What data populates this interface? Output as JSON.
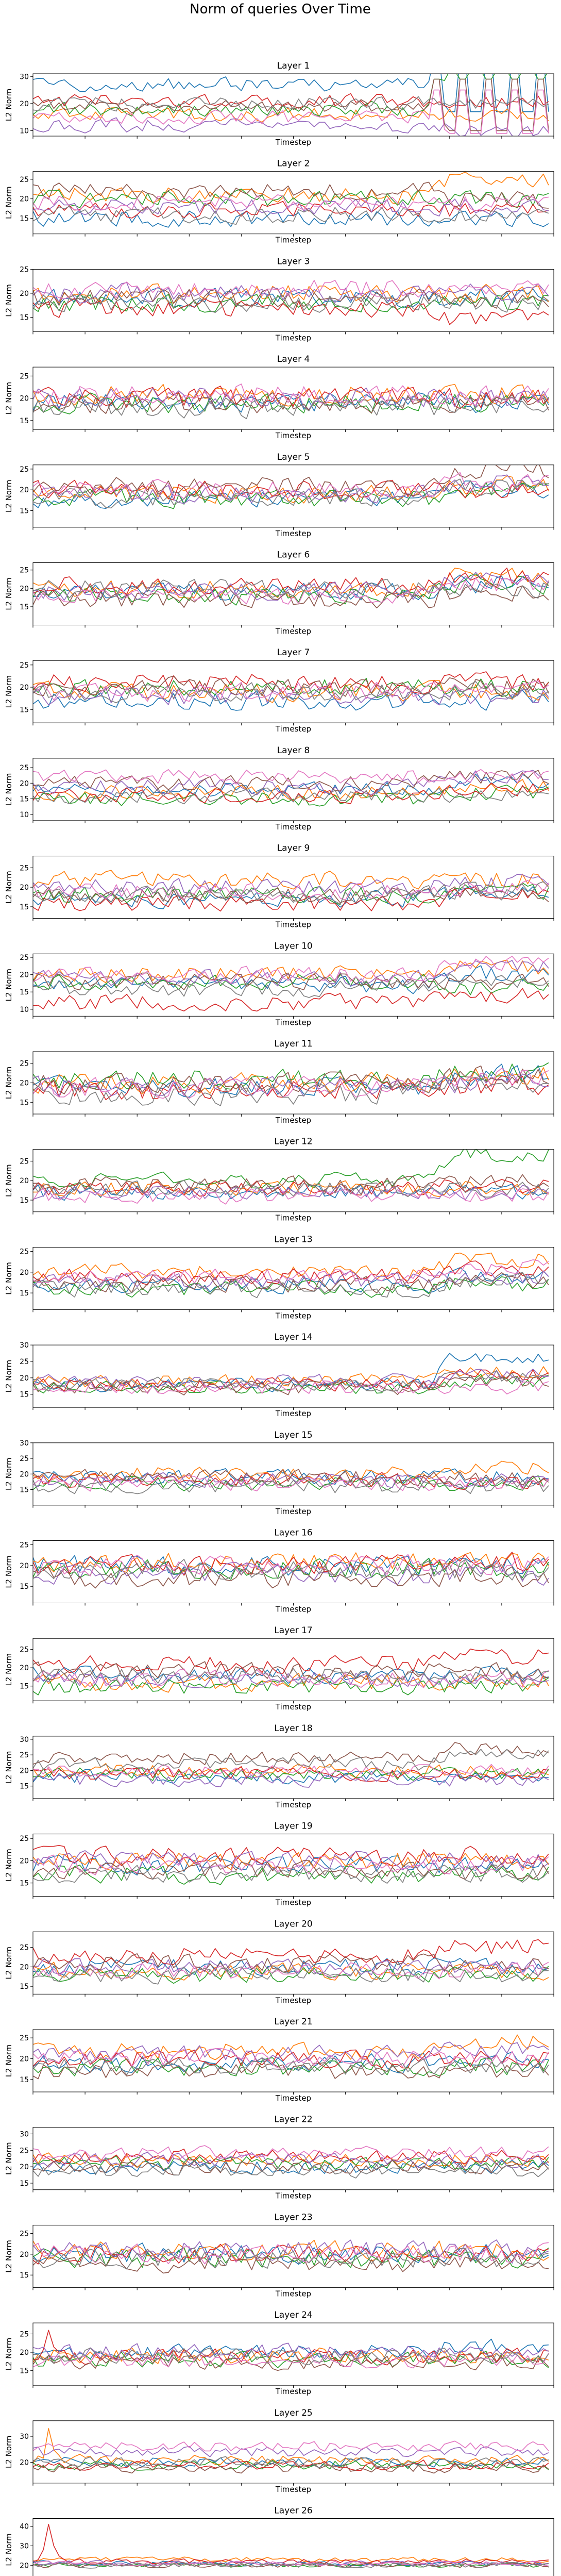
{
  "figure": {
    "title": "Norm of queries Over Time",
    "xlabel": "Timestep",
    "ylabel": "L2 Norm",
    "xlim": [
      0,
      100
    ],
    "xticks": [
      0,
      10,
      20,
      30,
      40,
      50,
      60,
      70,
      80,
      90,
      100
    ],
    "series_colors": [
      "#1f77b4",
      "#ff7f0e",
      "#2ca02c",
      "#d62728",
      "#9467bd",
      "#8c564b",
      "#e377c2",
      "#7f7f7f"
    ]
  },
  "chart_data": [
    {
      "type": "line",
      "title": "Layer 1",
      "ylabel": "L2 Norm",
      "xlabel": "Timestep",
      "ylim": [
        8,
        31
      ],
      "yticks": [
        10,
        20,
        30
      ],
      "levels": [
        27,
        16,
        18,
        21,
        12,
        19,
        15,
        20
      ],
      "spread": 2.4,
      "late_shift": [
        -10,
        0,
        14,
        0,
        -2,
        -9,
        -6,
        0
      ],
      "grid": false
    },
    {
      "type": "line",
      "title": "Layer 2",
      "ylabel": "L2 Norm",
      "xlabel": "Timestep",
      "ylim": [
        11,
        27
      ],
      "yticks": [
        15,
        20,
        25
      ],
      "levels": [
        15,
        21,
        20,
        17,
        18,
        22,
        19,
        16
      ],
      "spread": 2.0,
      "late_shift": [
        0,
        4,
        0,
        0,
        0,
        -2,
        0,
        0
      ],
      "grid": false
    },
    {
      "type": "line",
      "title": "Layer 3",
      "ylabel": "L2 Norm",
      "xlabel": "Timestep",
      "ylim": [
        12,
        25
      ],
      "yticks": [
        15,
        20,
        25
      ],
      "levels": [
        19,
        20,
        18,
        17,
        20,
        19,
        21,
        18
      ],
      "spread": 1.8,
      "late_shift": [
        0,
        0,
        0,
        -2,
        0,
        0,
        0,
        0
      ],
      "grid": false
    },
    {
      "type": "line",
      "title": "Layer 4",
      "ylabel": "L2 Norm",
      "xlabel": "Timestep",
      "ylim": [
        13,
        27
      ],
      "yticks": [
        15,
        20,
        25
      ],
      "levels": [
        19,
        21,
        19,
        20,
        20,
        19,
        21,
        18
      ],
      "spread": 2.2,
      "late_shift": [
        0,
        0,
        0,
        0,
        0,
        0,
        0,
        0
      ],
      "grid": false
    },
    {
      "type": "line",
      "title": "Layer 5",
      "ylabel": "L2 Norm",
      "xlabel": "Timestep",
      "ylim": [
        11,
        26
      ],
      "yticks": [
        15,
        20,
        25
      ],
      "levels": [
        18,
        19,
        18,
        20,
        19,
        21,
        20,
        18
      ],
      "spread": 2.0,
      "late_shift": [
        2,
        2,
        2,
        0,
        3,
        4,
        2,
        3
      ],
      "grid": false
    },
    {
      "type": "line",
      "title": "Layer 6",
      "ylabel": "L2 Norm",
      "xlabel": "Timestep",
      "ylim": [
        10,
        27
      ],
      "yticks": [
        15,
        20,
        25
      ],
      "levels": [
        19,
        20,
        18,
        21,
        19,
        17,
        18,
        20
      ],
      "spread": 2.3,
      "late_shift": [
        2,
        3,
        3,
        2,
        3,
        2,
        3,
        0
      ],
      "grid": false
    },
    {
      "type": "line",
      "title": "Layer 7",
      "ylabel": "L2 Norm",
      "xlabel": "Timestep",
      "ylim": [
        12,
        26
      ],
      "yticks": [
        15,
        20,
        25
      ],
      "levels": [
        17,
        19,
        20,
        21,
        18,
        20,
        19,
        19
      ],
      "spread": 2.0,
      "late_shift": [
        0,
        0,
        0,
        0,
        0,
        0,
        0,
        0
      ],
      "grid": false
    },
    {
      "type": "line",
      "title": "Layer 8",
      "ylabel": "L2 Norm",
      "xlabel": "Timestep",
      "ylim": [
        8,
        28
      ],
      "yticks": [
        10,
        15,
        20,
        25
      ],
      "levels": [
        18,
        17,
        15,
        16,
        19,
        20,
        22,
        16
      ],
      "spread": 2.2,
      "late_shift": [
        3,
        2,
        2,
        2,
        3,
        2,
        0,
        0
      ],
      "grid": false
    },
    {
      "type": "line",
      "title": "Layer 9",
      "ylabel": "L2 Norm",
      "xlabel": "Timestep",
      "ylim": [
        12,
        28
      ],
      "yticks": [
        15,
        20,
        25
      ],
      "levels": [
        17,
        22,
        18,
        16,
        20,
        18,
        19,
        18
      ],
      "spread": 2.0,
      "late_shift": [
        1,
        0,
        1,
        2,
        1,
        0,
        1,
        1
      ],
      "grid": false
    },
    {
      "type": "line",
      "title": "Layer 10",
      "ylabel": "L2 Norm",
      "xlabel": "Timestep",
      "ylim": [
        8,
        26
      ],
      "yticks": [
        10,
        15,
        20,
        25
      ],
      "levels": [
        17,
        20,
        18,
        12,
        19,
        18,
        20,
        16
      ],
      "spread": 2.2,
      "late_shift": [
        3,
        2,
        -2,
        2,
        3,
        0,
        3,
        2
      ],
      "grid": false
    },
    {
      "type": "line",
      "title": "Layer 11",
      "ylabel": "L2 Norm",
      "xlabel": "Timestep",
      "ylim": [
        12,
        28
      ],
      "yticks": [
        15,
        20,
        25
      ],
      "levels": [
        19,
        20,
        21,
        18,
        19,
        20,
        19,
        17
      ],
      "spread": 2.4,
      "late_shift": [
        3,
        2,
        2,
        1,
        1,
        2,
        2,
        2
      ],
      "grid": false
    },
    {
      "type": "line",
      "title": "Layer 12",
      "ylabel": "L2 Norm",
      "xlabel": "Timestep",
      "ylim": [
        12,
        28
      ],
      "yticks": [
        15,
        20,
        25
      ],
      "levels": [
        17,
        18,
        20,
        18,
        17,
        19,
        16,
        18
      ],
      "spread": 1.8,
      "late_shift": [
        0,
        0,
        7,
        1,
        0,
        1,
        0,
        0
      ],
      "grid": false
    },
    {
      "type": "line",
      "title": "Layer 13",
      "ylabel": "L2 Norm",
      "xlabel": "Timestep",
      "ylim": [
        11,
        26
      ],
      "yticks": [
        15,
        20,
        25
      ],
      "levels": [
        17,
        20,
        16,
        19,
        18,
        17,
        19,
        16
      ],
      "spread": 1.8,
      "late_shift": [
        2,
        3,
        1,
        2,
        1,
        1,
        2,
        2
      ],
      "grid": false
    },
    {
      "type": "line",
      "title": "Layer 14",
      "ylabel": "L2 Norm",
      "xlabel": "Timestep",
      "ylim": [
        11,
        30
      ],
      "yticks": [
        15,
        20,
        25,
        30
      ],
      "levels": [
        18,
        19,
        17,
        18,
        19,
        17,
        17,
        18
      ],
      "spread": 1.9,
      "late_shift": [
        8,
        3,
        2,
        3,
        2,
        2,
        0,
        2
      ],
      "grid": false
    },
    {
      "type": "line",
      "title": "Layer 15",
      "ylabel": "L2 Norm",
      "xlabel": "Timestep",
      "ylim": [
        10,
        30
      ],
      "yticks": [
        15,
        20,
        25,
        30
      ],
      "levels": [
        19,
        20,
        17,
        18,
        18,
        19,
        17,
        16
      ],
      "spread": 2.2,
      "late_shift": [
        0,
        2,
        0,
        -1,
        0,
        0,
        0,
        0
      ],
      "grid": false
    },
    {
      "type": "line",
      "title": "Layer 16",
      "ylabel": "L2 Norm",
      "xlabel": "Timestep",
      "ylim": [
        11,
        26
      ],
      "yticks": [
        15,
        20,
        25
      ],
      "levels": [
        20,
        21,
        19,
        20,
        18,
        17,
        20,
        19
      ],
      "spread": 2.3,
      "late_shift": [
        0,
        0,
        0,
        1,
        0,
        0,
        0,
        0
      ],
      "grid": false
    },
    {
      "type": "line",
      "title": "Layer 17",
      "ylabel": "L2 Norm",
      "xlabel": "Timestep",
      "ylim": [
        11,
        28
      ],
      "yticks": [
        15,
        20,
        25
      ],
      "levels": [
        18,
        16,
        15,
        21,
        17,
        19,
        17,
        18
      ],
      "spread": 2.2,
      "late_shift": [
        0,
        0,
        0,
        2,
        0,
        0,
        0,
        0
      ],
      "grid": false
    },
    {
      "type": "line",
      "title": "Layer 18",
      "ylabel": "L2 Norm",
      "xlabel": "Timestep",
      "ylim": [
        11,
        31
      ],
      "yticks": [
        15,
        20,
        25,
        30
      ],
      "levels": [
        18,
        20,
        19,
        19,
        17,
        24,
        20,
        22
      ],
      "spread": 2.0,
      "late_shift": [
        0,
        0,
        0,
        0,
        0,
        3,
        0,
        4
      ],
      "grid": false
    },
    {
      "type": "line",
      "title": "Layer 19",
      "ylabel": "L2 Norm",
      "xlabel": "Timestep",
      "ylim": [
        12,
        26
      ],
      "yticks": [
        15,
        20,
        25
      ],
      "levels": [
        19,
        20,
        17,
        21,
        20,
        18,
        19,
        17
      ],
      "spread": 1.9,
      "late_shift": [
        0,
        0,
        0,
        0,
        0,
        0,
        0,
        0
      ],
      "grid": false
    },
    {
      "type": "line",
      "title": "Layer 20",
      "ylabel": "L2 Norm",
      "xlabel": "Timestep",
      "ylim": [
        13,
        29
      ],
      "yticks": [
        15,
        20,
        25
      ],
      "levels": [
        20,
        19,
        18,
        23,
        20,
        21,
        19,
        18
      ],
      "spread": 2.0,
      "late_shift": [
        0,
        0,
        0,
        2,
        0,
        0,
        0,
        0
      ],
      "grid": false
    },
    {
      "type": "line",
      "title": "Layer 21",
      "ylabel": "L2 Norm",
      "xlabel": "Timestep",
      "ylim": [
        12,
        27
      ],
      "yticks": [
        15,
        20,
        25
      ],
      "levels": [
        19,
        22,
        18,
        20,
        21,
        17,
        20,
        18
      ],
      "spread": 2.0,
      "late_shift": [
        1,
        2,
        0,
        0,
        1,
        0,
        0,
        0
      ],
      "grid": false
    },
    {
      "type": "line",
      "title": "Layer 22",
      "ylabel": "L2 Norm",
      "xlabel": "Timestep",
      "ylim": [
        13,
        32
      ],
      "yticks": [
        15,
        20,
        25,
        30
      ],
      "levels": [
        20,
        22,
        21,
        23,
        22,
        20,
        24,
        19
      ],
      "spread": 2.0,
      "late_shift": [
        0,
        0,
        0,
        0,
        0,
        0,
        0,
        0
      ],
      "grid": false
    },
    {
      "type": "line",
      "title": "Layer 23",
      "ylabel": "L2 Norm",
      "xlabel": "Timestep",
      "ylim": [
        12,
        27
      ],
      "yticks": [
        15,
        20,
        25
      ],
      "levels": [
        20,
        21,
        19,
        20,
        21,
        18,
        20,
        19
      ],
      "spread": 2.2,
      "late_shift": [
        0,
        0,
        0,
        0,
        0,
        0,
        0,
        0
      ],
      "grid": false
    },
    {
      "type": "line",
      "title": "Layer 24",
      "ylabel": "L2 Norm",
      "xlabel": "Timestep",
      "ylim": [
        11,
        28
      ],
      "yticks": [
        15,
        20,
        25
      ],
      "levels": [
        20,
        19,
        18,
        19,
        20,
        17,
        18,
        19
      ],
      "spread": 2.0,
      "late_shift": [
        2,
        0,
        0,
        0,
        0,
        0,
        0,
        0
      ],
      "grid": false
    },
    {
      "type": "line",
      "title": "Layer 25",
      "ylabel": "L2 Norm",
      "xlabel": "Timestep",
      "ylim": [
        12,
        36
      ],
      "yticks": [
        20,
        30
      ],
      "levels": [
        20,
        21,
        19,
        19,
        24,
        18,
        26,
        20
      ],
      "spread": 1.8,
      "late_shift": [
        0,
        0,
        0,
        0,
        0,
        0,
        0,
        0
      ],
      "grid": false
    },
    {
      "type": "line",
      "title": "Layer 26",
      "ylabel": "L2 Norm",
      "xlabel": "Timestep",
      "ylim": [
        12,
        44
      ],
      "yticks": [
        20,
        30,
        40
      ],
      "levels": [
        21,
        23,
        20,
        22,
        21,
        20,
        21,
        20
      ],
      "spread": 1.2,
      "late_shift": [
        0,
        0,
        0,
        0,
        0,
        0,
        0,
        0
      ],
      "grid": false
    }
  ]
}
